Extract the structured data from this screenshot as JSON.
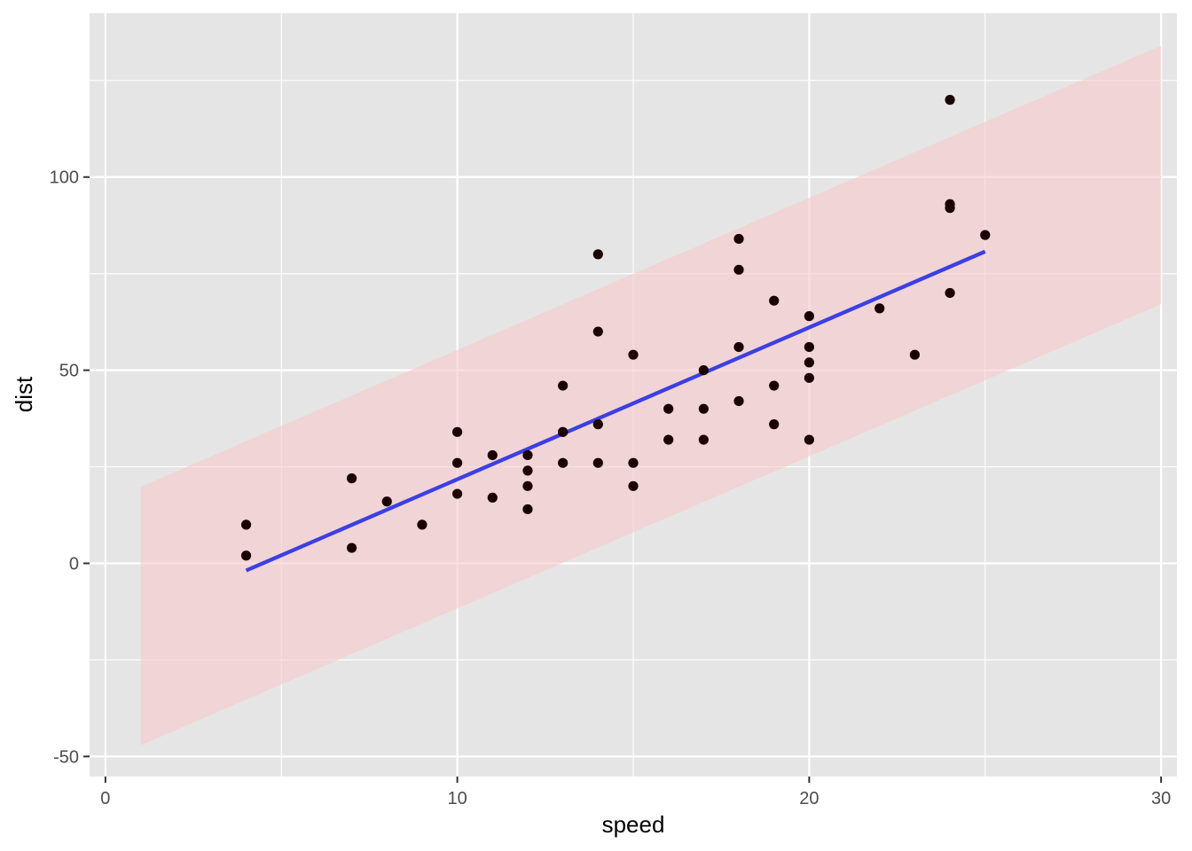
{
  "chart_data": {
    "type": "scatter",
    "xlabel": "speed",
    "ylabel": "dist",
    "xlim": [
      -0.45,
      30.45
    ],
    "ylim": [
      -55.2,
      142.4
    ],
    "x_ticks": [
      0,
      10,
      20,
      30
    ],
    "y_ticks": [
      -50,
      0,
      50,
      100
    ],
    "x_minor_ticks": [
      5,
      15,
      25
    ],
    "y_minor_ticks": [
      -25,
      25,
      75,
      125
    ],
    "grid": true,
    "colors": {
      "panel": "#e5e5e5",
      "grid": "#ffffff",
      "points": "#1a0000",
      "fit_line": "#3b3fe6",
      "band": "#f8c9cc"
    },
    "points": {
      "x": [
        4,
        4,
        7,
        7,
        8,
        9,
        10,
        10,
        10,
        11,
        11,
        12,
        12,
        12,
        12,
        13,
        13,
        13,
        13,
        14,
        14,
        14,
        14,
        15,
        15,
        15,
        16,
        16,
        17,
        17,
        17,
        18,
        18,
        18,
        18,
        19,
        19,
        19,
        20,
        20,
        20,
        20,
        20,
        22,
        23,
        24,
        24,
        24,
        24,
        25
      ],
      "y": [
        2,
        10,
        4,
        22,
        16,
        10,
        18,
        26,
        34,
        17,
        28,
        14,
        20,
        24,
        28,
        26,
        34,
        34,
        46,
        26,
        36,
        60,
        80,
        20,
        26,
        54,
        32,
        40,
        32,
        40,
        50,
        42,
        56,
        76,
        84,
        36,
        46,
        68,
        32,
        48,
        52,
        56,
        64,
        66,
        54,
        70,
        92,
        93,
        120,
        85
      ]
    },
    "fit_line": {
      "x": [
        4,
        25
      ],
      "y": [
        -1.85,
        80.73
      ]
    },
    "prediction_band": {
      "x": [
        1,
        30
      ],
      "upper": [
        19.8,
        134.0
      ],
      "lower": [
        -47.1,
        67.1
      ]
    }
  }
}
